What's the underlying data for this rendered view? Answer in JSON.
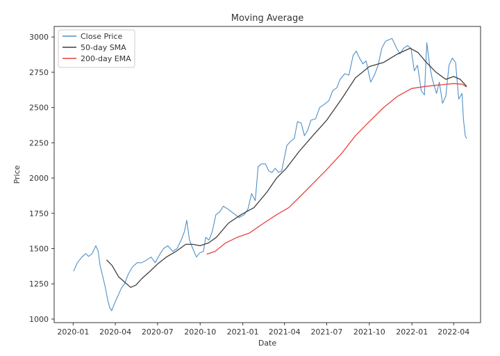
{
  "chart_data": {
    "type": "line",
    "title": "Moving Average",
    "xlabel": "Date",
    "ylabel": "Price",
    "xlim": [
      "2019-11-21",
      "2022-05-29"
    ],
    "ylim": [
      975,
      3075
    ],
    "x_ticks": [
      "2020-01",
      "2020-04",
      "2020-07",
      "2020-10",
      "2021-01",
      "2021-04",
      "2021-07",
      "2021-10",
      "2022-01",
      "2022-04"
    ],
    "y_ticks": [
      1000,
      1250,
      1500,
      1750,
      2000,
      2250,
      2500,
      2750,
      3000
    ],
    "grid": false,
    "legend_position": "upper-left",
    "series": [
      {
        "name": "Close Price",
        "color": "#4f8fc6",
        "points": [
          [
            "2020-01-02",
            1340
          ],
          [
            "2020-01-10",
            1400
          ],
          [
            "2020-01-20",
            1440
          ],
          [
            "2020-01-28",
            1465
          ],
          [
            "2020-02-03",
            1445
          ],
          [
            "2020-02-10",
            1460
          ],
          [
            "2020-02-19",
            1520
          ],
          [
            "2020-02-24",
            1480
          ],
          [
            "2020-02-28",
            1380
          ],
          [
            "2020-03-05",
            1300
          ],
          [
            "2020-03-10",
            1230
          ],
          [
            "2020-03-16",
            1130
          ],
          [
            "2020-03-20",
            1080
          ],
          [
            "2020-03-24",
            1060
          ],
          [
            "2020-03-30",
            1110
          ],
          [
            "2020-04-06",
            1160
          ],
          [
            "2020-04-14",
            1220
          ],
          [
            "2020-04-21",
            1250
          ],
          [
            "2020-04-29",
            1320
          ],
          [
            "2020-05-08",
            1370
          ],
          [
            "2020-05-18",
            1400
          ],
          [
            "2020-05-28",
            1400
          ],
          [
            "2020-06-08",
            1420
          ],
          [
            "2020-06-17",
            1440
          ],
          [
            "2020-06-26",
            1400
          ],
          [
            "2020-07-06",
            1460
          ],
          [
            "2020-07-14",
            1500
          ],
          [
            "2020-07-23",
            1520
          ],
          [
            "2020-08-03",
            1480
          ],
          [
            "2020-08-12",
            1500
          ],
          [
            "2020-08-21",
            1560
          ],
          [
            "2020-08-28",
            1620
          ],
          [
            "2020-09-02",
            1700
          ],
          [
            "2020-09-08",
            1560
          ],
          [
            "2020-09-15",
            1500
          ],
          [
            "2020-09-23",
            1440
          ],
          [
            "2020-09-30",
            1470
          ],
          [
            "2020-10-08",
            1480
          ],
          [
            "2020-10-13",
            1580
          ],
          [
            "2020-10-20",
            1560
          ],
          [
            "2020-10-27",
            1620
          ],
          [
            "2020-11-04",
            1740
          ],
          [
            "2020-11-12",
            1760
          ],
          [
            "2020-11-20",
            1800
          ],
          [
            "2020-11-30",
            1780
          ],
          [
            "2020-12-08",
            1760
          ],
          [
            "2020-12-16",
            1740
          ],
          [
            "2020-12-24",
            1720
          ],
          [
            "2021-01-04",
            1740
          ],
          [
            "2021-01-12",
            1780
          ],
          [
            "2021-01-20",
            1890
          ],
          [
            "2021-01-28",
            1840
          ],
          [
            "2021-02-03",
            2080
          ],
          [
            "2021-02-10",
            2100
          ],
          [
            "2021-02-19",
            2100
          ],
          [
            "2021-02-26",
            2050
          ],
          [
            "2021-03-05",
            2040
          ],
          [
            "2021-03-12",
            2070
          ],
          [
            "2021-03-19",
            2040
          ],
          [
            "2021-03-26",
            2050
          ],
          [
            "2021-04-06",
            2230
          ],
          [
            "2021-04-14",
            2260
          ],
          [
            "2021-04-22",
            2280
          ],
          [
            "2021-04-29",
            2400
          ],
          [
            "2021-05-07",
            2390
          ],
          [
            "2021-05-14",
            2300
          ],
          [
            "2021-05-21",
            2340
          ],
          [
            "2021-05-28",
            2410
          ],
          [
            "2021-06-07",
            2420
          ],
          [
            "2021-06-16",
            2500
          ],
          [
            "2021-06-25",
            2520
          ],
          [
            "2021-07-06",
            2550
          ],
          [
            "2021-07-14",
            2620
          ],
          [
            "2021-07-23",
            2640
          ],
          [
            "2021-07-30",
            2700
          ],
          [
            "2021-08-09",
            2740
          ],
          [
            "2021-08-18",
            2730
          ],
          [
            "2021-08-27",
            2870
          ],
          [
            "2021-09-03",
            2900
          ],
          [
            "2021-09-10",
            2850
          ],
          [
            "2021-09-17",
            2810
          ],
          [
            "2021-09-24",
            2830
          ],
          [
            "2021-10-04",
            2680
          ],
          [
            "2021-10-12",
            2730
          ],
          [
            "2021-10-20",
            2800
          ],
          [
            "2021-10-28",
            2920
          ],
          [
            "2021-11-05",
            2970
          ],
          [
            "2021-11-12",
            2980
          ],
          [
            "2021-11-19",
            2990
          ],
          [
            "2021-11-29",
            2920
          ],
          [
            "2021-12-06",
            2880
          ],
          [
            "2021-12-14",
            2920
          ],
          [
            "2021-12-22",
            2940
          ],
          [
            "2021-12-30",
            2920
          ],
          [
            "2022-01-06",
            2760
          ],
          [
            "2022-01-13",
            2800
          ],
          [
            "2022-01-21",
            2620
          ],
          [
            "2022-01-28",
            2590
          ],
          [
            "2022-02-02",
            2960
          ],
          [
            "2022-02-08",
            2800
          ],
          [
            "2022-02-14",
            2700
          ],
          [
            "2022-02-23",
            2600
          ],
          [
            "2022-03-01",
            2680
          ],
          [
            "2022-03-08",
            2530
          ],
          [
            "2022-03-15",
            2580
          ],
          [
            "2022-03-22",
            2800
          ],
          [
            "2022-03-29",
            2850
          ],
          [
            "2022-04-05",
            2820
          ],
          [
            "2022-04-12",
            2560
          ],
          [
            "2022-04-19",
            2600
          ],
          [
            "2022-04-22",
            2420
          ],
          [
            "2022-04-26",
            2300
          ],
          [
            "2022-04-29",
            2280
          ]
        ]
      },
      {
        "name": "50-day SMA",
        "color": "#3d3d3d",
        "points": [
          [
            "2020-03-13",
            1420
          ],
          [
            "2020-03-25",
            1380
          ],
          [
            "2020-04-08",
            1300
          ],
          [
            "2020-04-22",
            1260
          ],
          [
            "2020-05-04",
            1225
          ],
          [
            "2020-05-15",
            1240
          ],
          [
            "2020-05-29",
            1290
          ],
          [
            "2020-06-15",
            1340
          ],
          [
            "2020-07-01",
            1390
          ],
          [
            "2020-07-20",
            1440
          ],
          [
            "2020-08-10",
            1480
          ],
          [
            "2020-08-31",
            1530
          ],
          [
            "2020-09-15",
            1530
          ],
          [
            "2020-10-01",
            1520
          ],
          [
            "2020-10-19",
            1540
          ],
          [
            "2020-11-05",
            1580
          ],
          [
            "2020-12-01",
            1680
          ],
          [
            "2020-12-28",
            1740
          ],
          [
            "2021-01-25",
            1790
          ],
          [
            "2021-02-22",
            1900
          ],
          [
            "2021-03-15",
            2000
          ],
          [
            "2021-04-05",
            2070
          ],
          [
            "2021-05-03",
            2190
          ],
          [
            "2021-06-01",
            2300
          ],
          [
            "2021-07-01",
            2410
          ],
          [
            "2021-08-02",
            2560
          ],
          [
            "2021-09-01",
            2710
          ],
          [
            "2021-10-01",
            2790
          ],
          [
            "2021-11-01",
            2820
          ],
          [
            "2021-12-01",
            2880
          ],
          [
            "2021-12-28",
            2920
          ],
          [
            "2022-01-14",
            2890
          ],
          [
            "2022-02-01",
            2820
          ],
          [
            "2022-02-22",
            2750
          ],
          [
            "2022-03-15",
            2700
          ],
          [
            "2022-04-01",
            2720
          ],
          [
            "2022-04-15",
            2700
          ],
          [
            "2022-04-29",
            2650
          ]
        ]
      },
      {
        "name": "200-day EMA",
        "color": "#e8413c",
        "points": [
          [
            "2020-10-15",
            1460
          ],
          [
            "2020-11-02",
            1480
          ],
          [
            "2020-11-25",
            1540
          ],
          [
            "2020-12-20",
            1580
          ],
          [
            "2021-01-15",
            1610
          ],
          [
            "2021-02-15",
            1680
          ],
          [
            "2021-03-15",
            1740
          ],
          [
            "2021-04-10",
            1790
          ],
          [
            "2021-05-05",
            1870
          ],
          [
            "2021-06-01",
            1960
          ],
          [
            "2021-07-01",
            2060
          ],
          [
            "2021-08-01",
            2170
          ],
          [
            "2021-09-01",
            2300
          ],
          [
            "2021-10-01",
            2400
          ],
          [
            "2021-11-01",
            2500
          ],
          [
            "2021-12-01",
            2580
          ],
          [
            "2021-12-31",
            2635
          ],
          [
            "2022-01-31",
            2650
          ],
          [
            "2022-03-01",
            2660
          ],
          [
            "2022-04-01",
            2670
          ],
          [
            "2022-04-20",
            2665
          ],
          [
            "2022-04-29",
            2645
          ]
        ]
      }
    ]
  }
}
